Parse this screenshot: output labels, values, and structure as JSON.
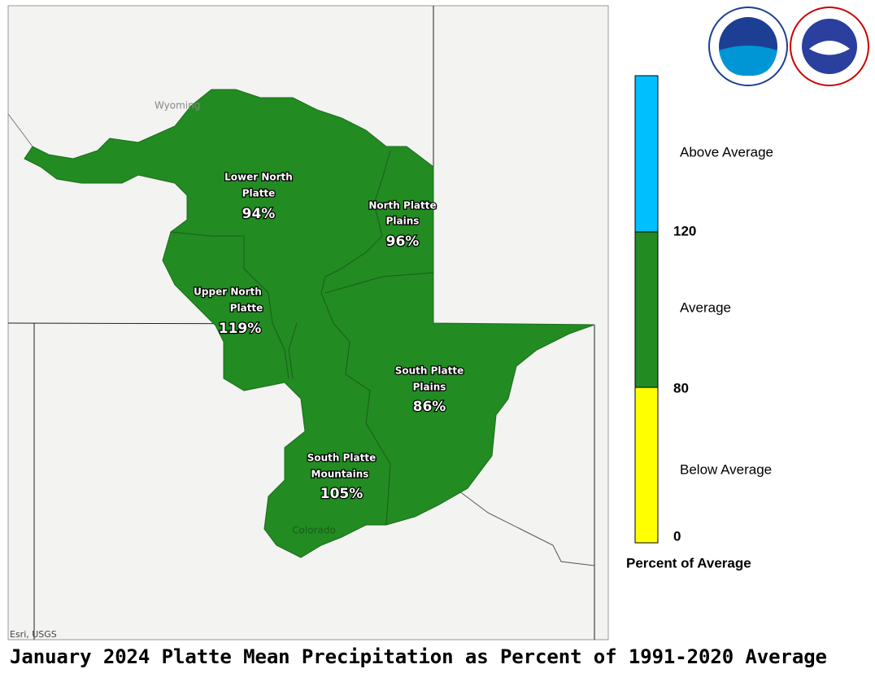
{
  "title": "January 2024 Platte Mean Precipitation as Percent of 1991-2020 Average",
  "map": {
    "state_labels": [
      "Wyoming",
      "Colorado"
    ],
    "attribution": "Esri, USGS",
    "regions": [
      {
        "name": [
          "Lower North",
          "Platte"
        ],
        "value": "94%"
      },
      {
        "name": [
          "North Platte",
          "Plains"
        ],
        "value": "96%"
      },
      {
        "name": [
          "Upper North",
          "Platte"
        ],
        "value": "119%"
      },
      {
        "name": [
          "South Platte",
          "Plains"
        ],
        "value": "86%"
      },
      {
        "name": [
          "South Platte",
          "Mountains"
        ],
        "value": "105%"
      }
    ]
  },
  "legend": {
    "title": "Percent of Average",
    "classes": [
      {
        "label": "Above Average",
        "color": "#00bfff"
      },
      {
        "label": "Average",
        "color": "#228b22"
      },
      {
        "label": "Below Average",
        "color": "#ffff00"
      }
    ],
    "breaks": [
      120,
      80,
      0
    ]
  }
}
